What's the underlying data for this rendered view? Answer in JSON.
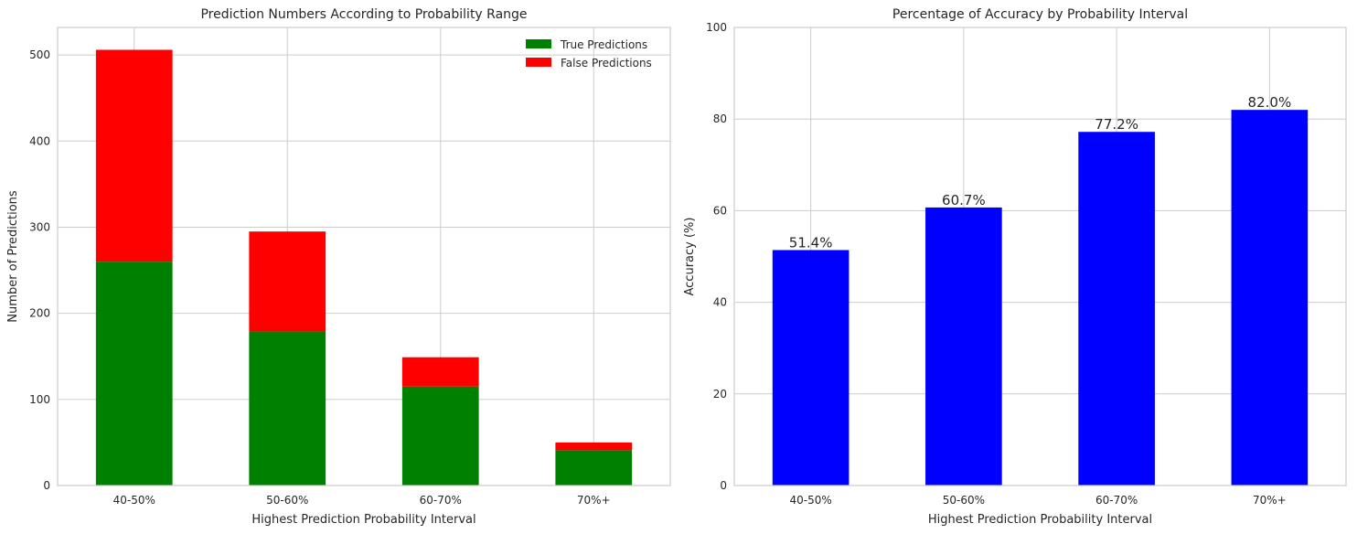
{
  "chart_data": [
    {
      "type": "bar",
      "stacked": true,
      "title": "Prediction Numbers According to Probability Range",
      "xlabel": "Highest Prediction Probability Interval",
      "ylabel": "Number of Predictions",
      "categories": [
        "40-50%",
        "50-60%",
        "60-70%",
        "70%+"
      ],
      "series": [
        {
          "name": "True Predictions",
          "color": "#008000",
          "values": [
            260,
            179,
            115,
            41
          ]
        },
        {
          "name": "False Predictions",
          "color": "#ff0000",
          "values": [
            246,
            116,
            34,
            9
          ]
        }
      ],
      "ylim": [
        0,
        532
      ],
      "yticks": [
        0,
        100,
        200,
        300,
        400,
        500
      ],
      "grid": true,
      "legend_position": "top-right"
    },
    {
      "type": "bar",
      "title": "Percentage of Accuracy by Probability Interval",
      "xlabel": "Highest Prediction Probability Interval",
      "ylabel": "Accuracy (%)",
      "categories": [
        "40-50%",
        "50-60%",
        "60-70%",
        "70%+"
      ],
      "color": "#0000ff",
      "values": [
        51.4,
        60.7,
        77.2,
        82.0
      ],
      "data_labels": [
        "51.4%",
        "60.7%",
        "77.2%",
        "82.0%"
      ],
      "ylim": [
        0,
        100
      ],
      "yticks": [
        0,
        20,
        40,
        60,
        80,
        100
      ],
      "grid": true
    }
  ]
}
